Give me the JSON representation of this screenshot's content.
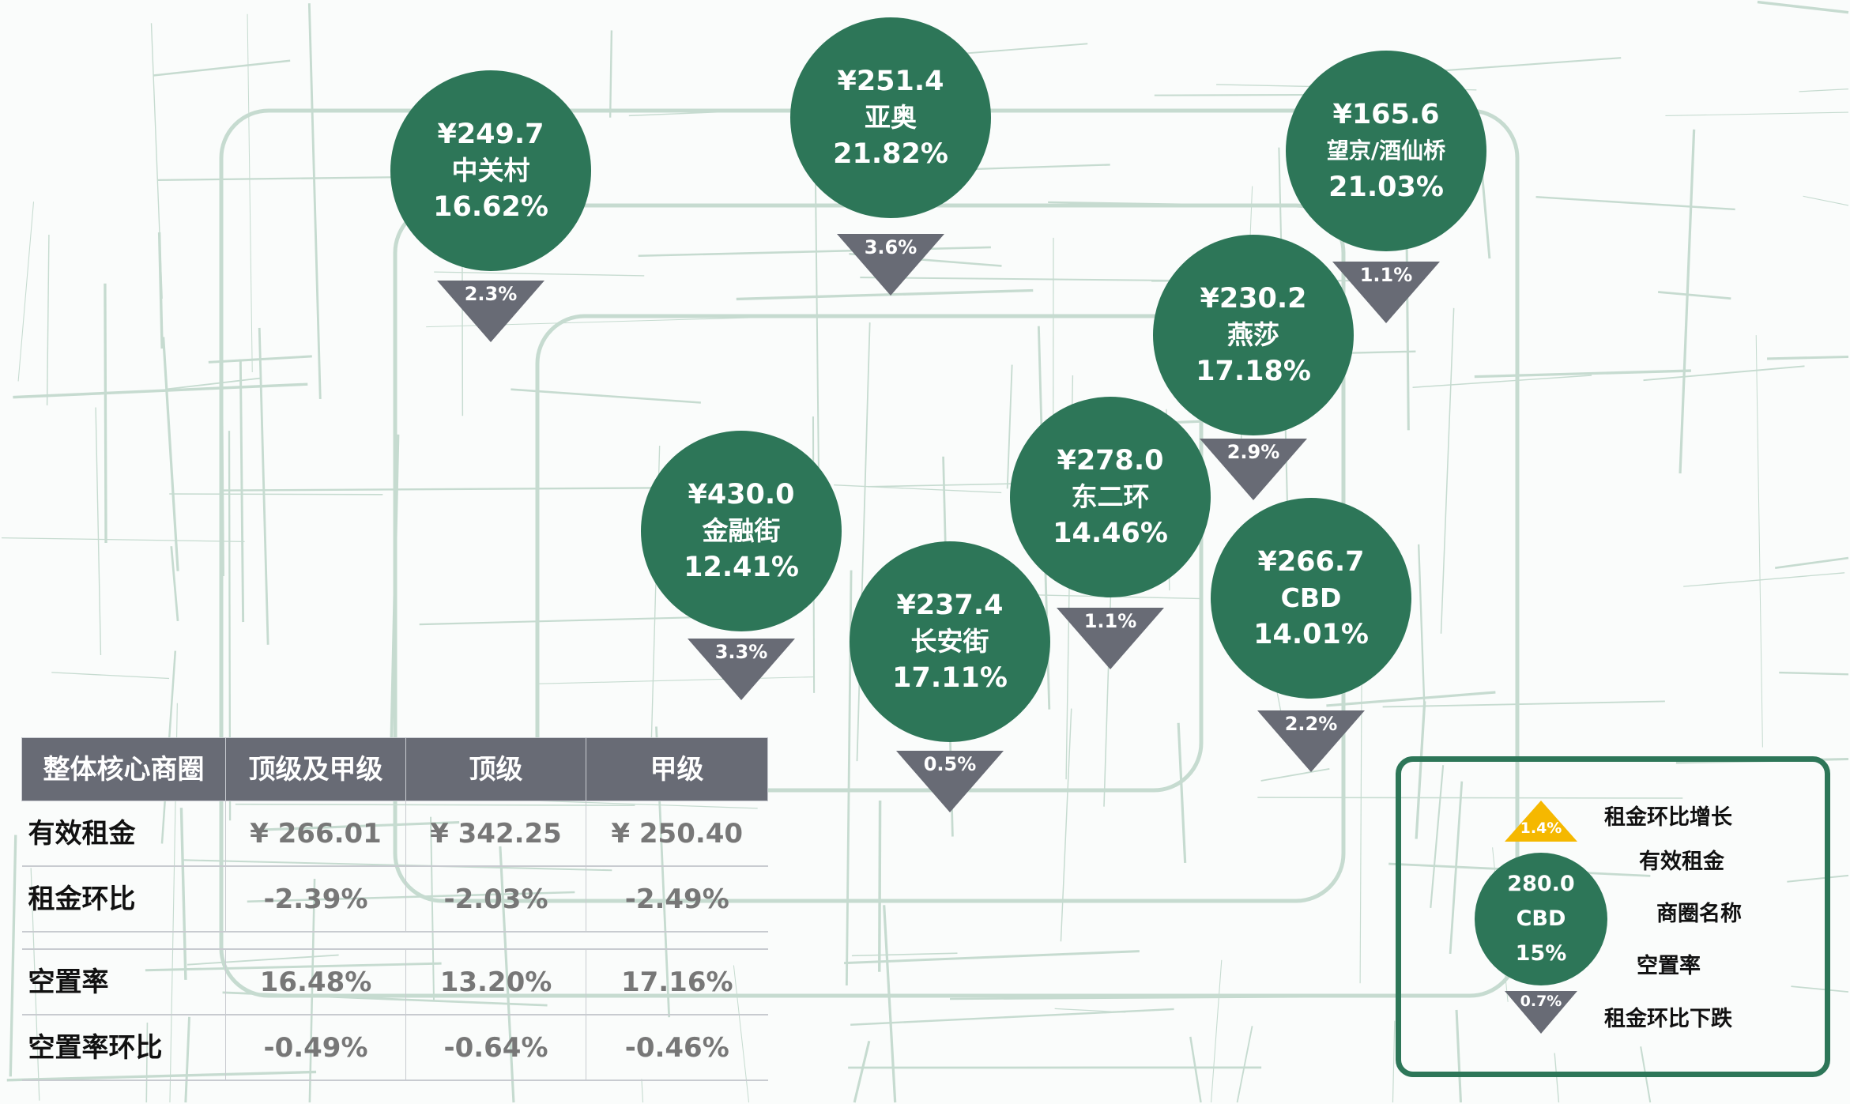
{
  "colors": {
    "bubble": "#2d7658",
    "decline": "#686b75",
    "growth": "#f5b800",
    "map_roads": "#c6dbd0"
  },
  "districts": [
    {
      "price": "¥249.7",
      "name": "中关村",
      "vacancy": "16.62%",
      "change": "2.3%",
      "direction": "down"
    },
    {
      "price": "¥251.4",
      "name": "亚奥",
      "vacancy": "21.82%",
      "change": "3.6%",
      "direction": "down"
    },
    {
      "price": "¥165.6",
      "name": "望京/酒仙桥",
      "vacancy": "21.03%",
      "change": "1.1%",
      "direction": "down"
    },
    {
      "price": "¥230.2",
      "name": "燕莎",
      "vacancy": "17.18%",
      "change": "2.9%",
      "direction": "down"
    },
    {
      "price": "¥430.0",
      "name": "金融街",
      "vacancy": "12.41%",
      "change": "3.3%",
      "direction": "down"
    },
    {
      "price": "¥278.0",
      "name": "东二环",
      "vacancy": "14.46%",
      "change": "1.1%",
      "direction": "down"
    },
    {
      "price": "¥237.4",
      "name": "长安街",
      "vacancy": "17.11%",
      "change": "0.5%",
      "direction": "down"
    },
    {
      "price": "¥266.7",
      "name": "CBD",
      "vacancy": "14.01%",
      "change": "2.2%",
      "direction": "down"
    }
  ],
  "table": {
    "headers": [
      "整体核心商圈",
      "顶级及甲级",
      "顶级",
      "甲级"
    ],
    "rows": [
      [
        "有效租金",
        "¥ 266.01",
        "¥ 342.25",
        "¥ 250.40"
      ],
      [
        "租金环比",
        "-2.39%",
        "-2.03%",
        "-2.49%"
      ],
      [
        "空置率",
        "16.48%",
        "13.20%",
        "17.16%"
      ],
      [
        "空置率环比",
        "-0.49%",
        "-0.64%",
        "-0.46%"
      ]
    ]
  },
  "legend": {
    "up_value": "1.4%",
    "up_label": "租金环比增长",
    "price": "280.0",
    "price_label": "有效租金",
    "name": "CBD",
    "name_label": "商圈名称",
    "vacancy": "15%",
    "vacancy_label": "空置率",
    "down_value": "0.7%",
    "down_label": "租金环比下跌"
  }
}
